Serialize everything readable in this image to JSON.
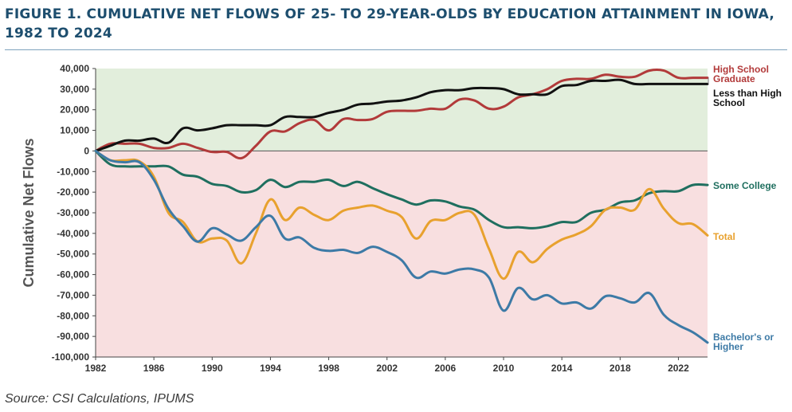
{
  "figure": {
    "title": "FIGURE 1. CUMULATIVE NET FLOWS OF 25- TO 29-YEAR-OLDS BY EDUCATION ATTAINMENT IN IOWA, 1982 TO 2024",
    "source": "Source: CSI Calculations, IPUMS"
  },
  "colors": {
    "positive_region": "#e2eedc",
    "negative_region": "#f8dfe0",
    "high_school_graduate": "#b23a3a",
    "less_than_high_school": "#111111",
    "some_college": "#1f6f5f",
    "total": "#e8a12e",
    "bachelors_or_higher": "#3d7aa6"
  },
  "chart_data": {
    "type": "line",
    "title": "FIGURE 1. CUMULATIVE NET FLOWS OF 25- TO 29-YEAR-OLDS BY EDUCATION ATTAINMENT IN IOWA, 1982 TO 2024",
    "xlabel": "",
    "ylabel": "Cumulative Net Flows",
    "xlim": [
      1982,
      2024
    ],
    "ylim": [
      -100000,
      40000
    ],
    "xticks": [
      1982,
      1986,
      1990,
      1994,
      1998,
      2002,
      2006,
      2010,
      2014,
      2018,
      2022
    ],
    "xtick_labels": [
      "1982",
      "1986",
      "1990",
      "1994",
      "1998",
      "2002",
      "2006",
      "2010",
      "2014",
      "2018",
      "2022"
    ],
    "yticks": [
      40000,
      30000,
      20000,
      10000,
      0,
      -10000,
      -20000,
      -30000,
      -40000,
      -50000,
      -60000,
      -70000,
      -80000,
      -90000,
      -100000
    ],
    "ytick_labels": [
      "40,000",
      "30,000",
      "20,000",
      "10,000",
      "0",
      "-10,000",
      "-20,000",
      "-30,000",
      "-40,000",
      "-50,000",
      "-60,000",
      "-70,000",
      "-80,000",
      "-90,000",
      "-100,000"
    ],
    "x": [
      1982,
      1983,
      1984,
      1985,
      1986,
      1987,
      1988,
      1989,
      1990,
      1991,
      1992,
      1993,
      1994,
      1995,
      1996,
      1997,
      1998,
      1999,
      2000,
      2001,
      2002,
      2003,
      2004,
      2005,
      2006,
      2007,
      2008,
      2009,
      2010,
      2011,
      2012,
      2013,
      2014,
      2015,
      2016,
      2017,
      2018,
      2019,
      2020,
      2021,
      2022,
      2023,
      2024
    ],
    "series": [
      {
        "name": "High School Graduate",
        "label_lines": [
          "High School",
          "Graduate"
        ],
        "color_key": "high_school_graduate",
        "values": [
          0,
          3500,
          3500,
          3500,
          1500,
          1500,
          3500,
          1500,
          -500,
          -500,
          -3500,
          2500,
          9500,
          9500,
          13500,
          15000,
          10000,
          15500,
          15000,
          15500,
          19000,
          19500,
          19500,
          20500,
          20500,
          25000,
          24500,
          20500,
          21500,
          26000,
          27500,
          30000,
          34000,
          35000,
          35000,
          37000,
          36000,
          36000,
          39000,
          39000,
          35500,
          35500,
          35500
        ]
      },
      {
        "name": "Less than High School",
        "label_lines": [
          "Less than High",
          "School"
        ],
        "color_key": "less_than_high_school",
        "values": [
          0,
          2500,
          5000,
          5000,
          6000,
          4000,
          11000,
          10000,
          11000,
          12500,
          12500,
          12500,
          12500,
          16500,
          16500,
          16500,
          18500,
          20000,
          22500,
          23000,
          24000,
          24500,
          26000,
          28500,
          29500,
          29500,
          30500,
          30500,
          30000,
          27500,
          27500,
          27500,
          31500,
          32000,
          34000,
          34000,
          34500,
          32500,
          32500,
          32500,
          32500,
          32500,
          32500
        ]
      },
      {
        "name": "Some College",
        "label_lines": [
          "Some College"
        ],
        "color_key": "some_college",
        "values": [
          0,
          -6500,
          -7500,
          -7500,
          -7500,
          -7500,
          -11500,
          -12500,
          -16000,
          -17000,
          -20000,
          -19000,
          -14000,
          -17500,
          -15000,
          -15000,
          -14000,
          -17000,
          -15000,
          -18000,
          -21000,
          -23500,
          -26000,
          -24000,
          -24500,
          -27000,
          -28500,
          -33500,
          -37000,
          -37000,
          -37500,
          -36500,
          -34500,
          -34500,
          -30000,
          -28500,
          -25000,
          -24000,
          -20500,
          -19500,
          -19500,
          -16500,
          -16500
        ]
      },
      {
        "name": "Total",
        "label_lines": [
          "Total"
        ],
        "color_key": "total",
        "values": [
          0,
          -4500,
          -4500,
          -5000,
          -12500,
          -30000,
          -34500,
          -44000,
          -42500,
          -43500,
          -54500,
          -40000,
          -23500,
          -33500,
          -27500,
          -31000,
          -33500,
          -29000,
          -27500,
          -26500,
          -29000,
          -32000,
          -42500,
          -34000,
          -33500,
          -30000,
          -31000,
          -47500,
          -62000,
          -49000,
          -54000,
          -47500,
          -43000,
          -40500,
          -36500,
          -28500,
          -27500,
          -28500,
          -18500,
          -28000,
          -35000,
          -35500,
          -41000
        ]
      },
      {
        "name": "Bachelor's or Higher",
        "label_lines": [
          "Bachelor's or",
          "Higher"
        ],
        "color_key": "bachelors_or_higher",
        "values": [
          0,
          -4500,
          -5500,
          -5500,
          -14000,
          -28000,
          -36500,
          -44000,
          -37500,
          -40500,
          -43500,
          -37000,
          -31500,
          -42500,
          -42000,
          -47000,
          -48500,
          -48000,
          -49500,
          -46500,
          -49000,
          -53000,
          -61500,
          -58500,
          -59500,
          -57500,
          -57500,
          -61500,
          -77500,
          -66500,
          -72000,
          -70000,
          -74000,
          -73500,
          -76500,
          -70500,
          -71500,
          -73500,
          -69000,
          -79500,
          -84500,
          -88000,
          -93000
        ]
      }
    ]
  }
}
